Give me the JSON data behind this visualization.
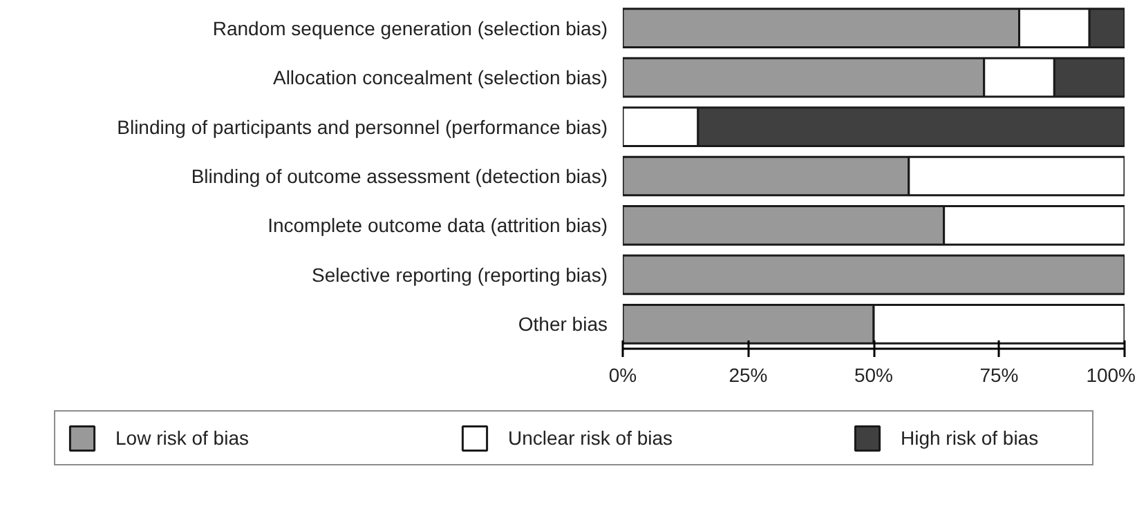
{
  "chart_data": {
    "type": "bar",
    "orientation": "horizontal",
    "stacked": true,
    "categories": [
      "Random sequence generation (selection bias)",
      "Allocation concealment (selection bias)",
      "Blinding of participants and personnel (performance bias)",
      "Blinding of outcome assessment (detection bias)",
      "Incomplete outcome data (attrition bias)",
      "Selective reporting (reporting bias)",
      "Other bias"
    ],
    "series": [
      {
        "name": "Low risk of bias",
        "color": "#999999",
        "values": [
          79,
          72,
          0,
          57,
          64,
          100,
          50
        ]
      },
      {
        "name": "Unclear risk of bias",
        "color": "#ffffff",
        "values": [
          14,
          14,
          15,
          43,
          36,
          0,
          50
        ]
      },
      {
        "name": "High risk of bias",
        "color": "#404040",
        "values": [
          7,
          14,
          85,
          0,
          0,
          0,
          0
        ]
      }
    ],
    "xlim": [
      0,
      100
    ],
    "xticks": [
      {
        "value": 0,
        "label": "0%"
      },
      {
        "value": 25,
        "label": "25%"
      },
      {
        "value": 50,
        "label": "50%"
      },
      {
        "value": 75,
        "label": "75%"
      },
      {
        "value": 100,
        "label": "100%"
      }
    ],
    "grid": false,
    "legend": "bottom"
  }
}
